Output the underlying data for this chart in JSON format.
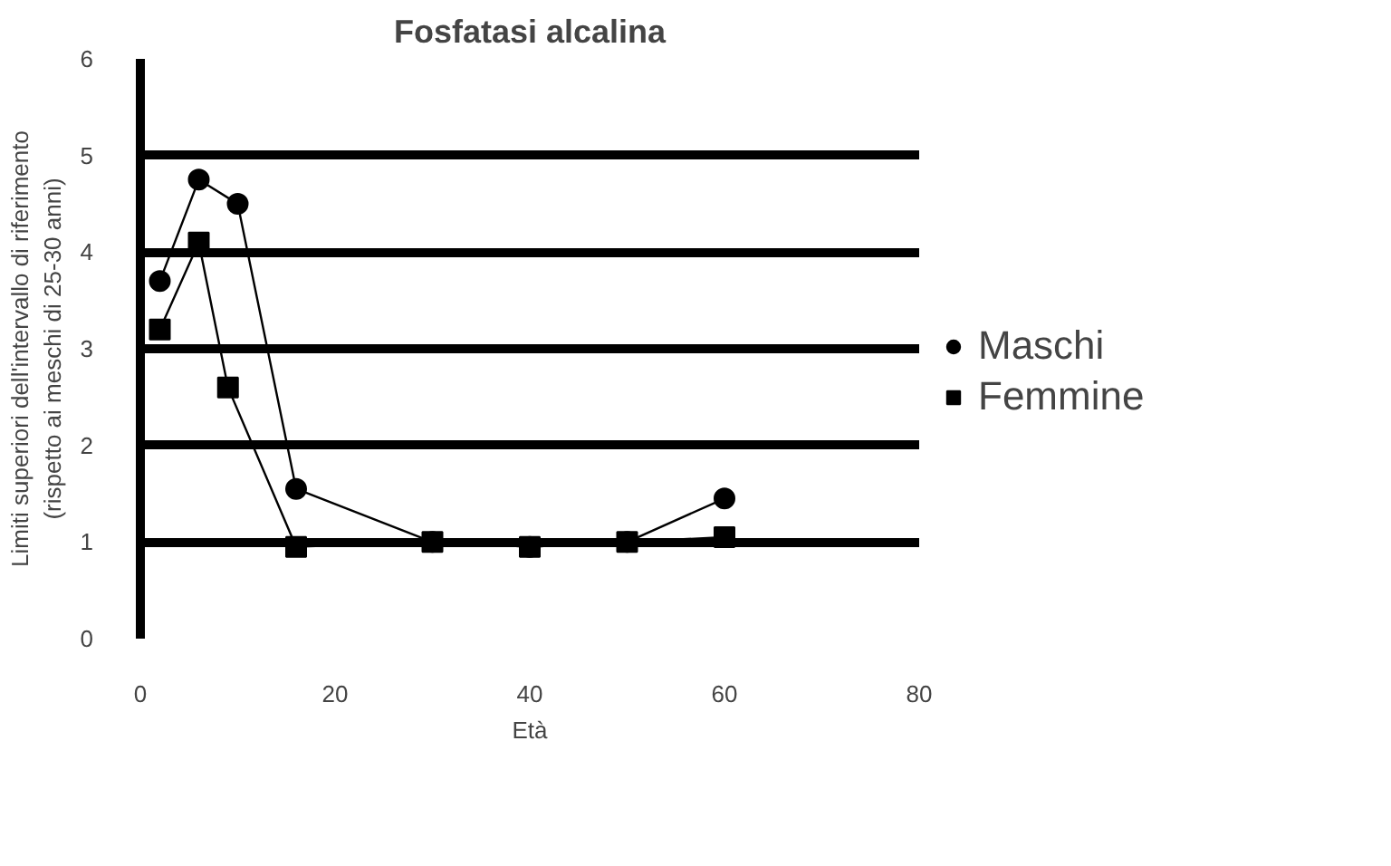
{
  "chart_data": {
    "type": "line",
    "title": "Fosfatasi alcalina",
    "xlabel": "Età",
    "ylabel": "Limiti superiori dell'intervallo di riferimento\n(rispetto ai meschi di 25-30 anni)",
    "series": [
      {
        "name": "Maschi",
        "color": "#000000",
        "marker": "circle",
        "x": [
          2,
          6,
          10,
          16,
          30,
          40,
          50,
          60
        ],
        "values": [
          3.7,
          4.75,
          4.5,
          1.55,
          1.0,
          0.95,
          1.0,
          1.45
        ]
      },
      {
        "name": "Femmine",
        "color": "#000000",
        "marker": "square",
        "x": [
          2,
          6,
          9,
          16,
          30,
          40,
          50,
          60
        ],
        "values": [
          3.2,
          4.1,
          2.6,
          0.95,
          1.0,
          0.95,
          1.0,
          1.05
        ]
      }
    ],
    "xlim": [
      0,
      80
    ],
    "xticks": [
      0,
      20,
      40,
      60,
      80
    ],
    "ylim": [
      0,
      6
    ],
    "yticks": [
      0,
      1,
      2,
      3,
      4,
      5,
      6
    ],
    "grid": "y",
    "legend": "right"
  }
}
